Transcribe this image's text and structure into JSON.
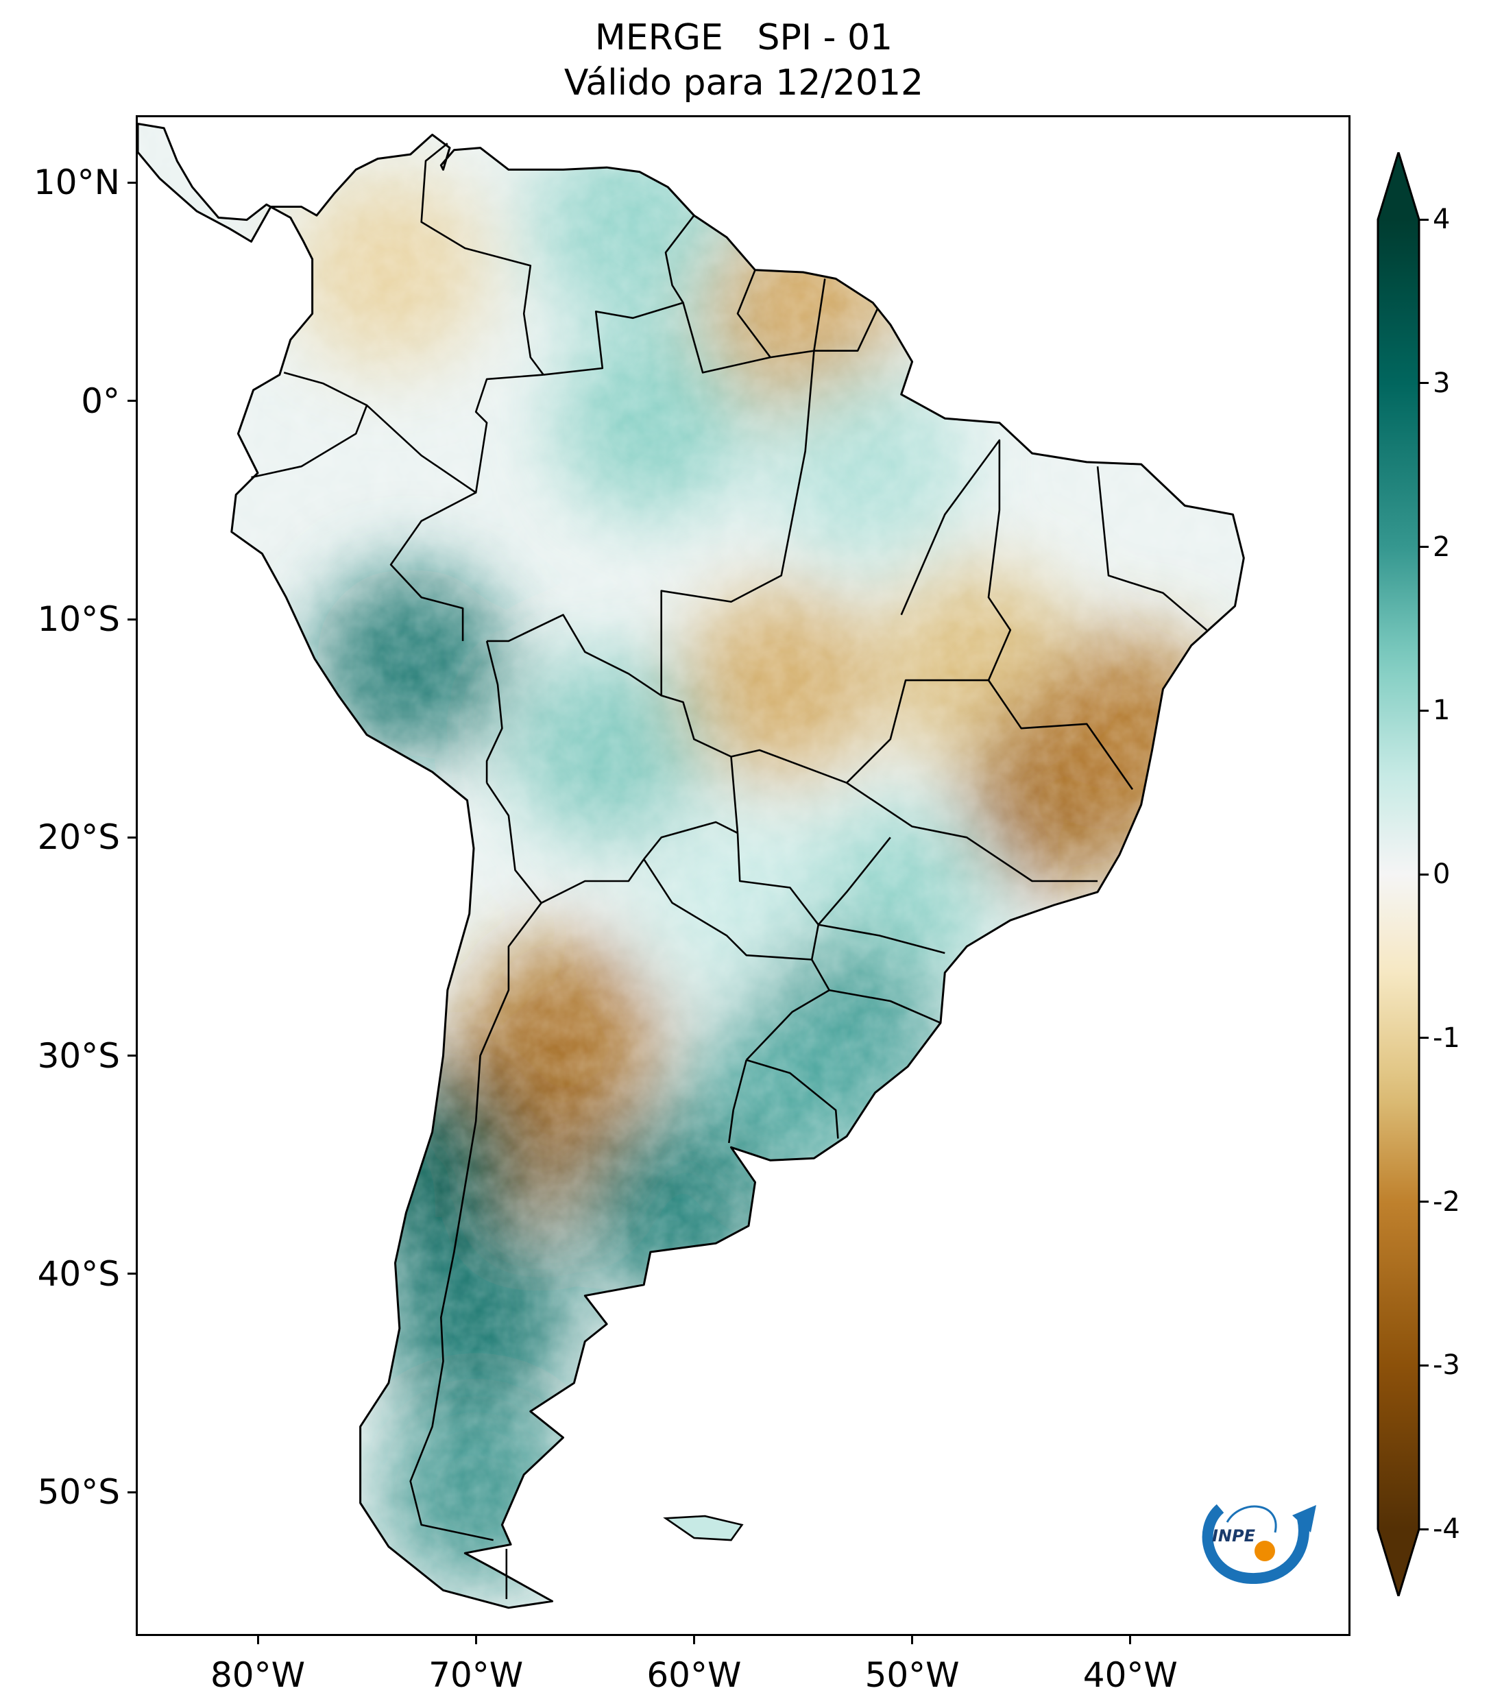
{
  "title": {
    "line1": "MERGE   SPI - 01",
    "line2": "Válido para 12/2012"
  },
  "map": {
    "region": "South America",
    "variable": "SPI - 01",
    "extent": {
      "lon_min": -85.5,
      "lon_max": -30.0,
      "lat_min": -56.5,
      "lat_max": 13.0
    },
    "lat_ticks": [
      {
        "value": 10,
        "label": "10°N"
      },
      {
        "value": 0,
        "label": "0°"
      },
      {
        "value": -10,
        "label": "10°S"
      },
      {
        "value": -20,
        "label": "20°S"
      },
      {
        "value": -30,
        "label": "30°S"
      },
      {
        "value": -40,
        "label": "40°S"
      },
      {
        "value": -50,
        "label": "50°S"
      }
    ],
    "lon_ticks": [
      {
        "value": -80,
        "label": "80°W"
      },
      {
        "value": -70,
        "label": "70°W"
      },
      {
        "value": -60,
        "label": "60°W"
      },
      {
        "value": -50,
        "label": "50°W"
      },
      {
        "value": -40,
        "label": "40°W"
      }
    ],
    "data_regions": [
      {
        "name": "colombia-andes",
        "lon": -74,
        "lat": 6,
        "spi": -1.0
      },
      {
        "name": "venezuela-east",
        "lon": -63,
        "lat": 8,
        "spi": 1.2
      },
      {
        "name": "guianas",
        "lon": -55,
        "lat": 4,
        "spi": -1.7
      },
      {
        "name": "amazon-north",
        "lon": -62,
        "lat": -1,
        "spi": 1.3
      },
      {
        "name": "amazon-para",
        "lon": -52,
        "lat": -3,
        "spi": 0.9
      },
      {
        "name": "peru-andes",
        "lon": -73,
        "lat": -12,
        "spi": 2.8
      },
      {
        "name": "bolivia-lowlands",
        "lon": -64,
        "lat": -16,
        "spi": 1.4
      },
      {
        "name": "mato-grosso",
        "lon": -56,
        "lat": -13,
        "spi": -1.6
      },
      {
        "name": "goias-bahia",
        "lon": -47,
        "lat": -12,
        "spi": -1.4
      },
      {
        "name": "minas-gerais",
        "lon": -43,
        "lat": -18,
        "spi": -2.7
      },
      {
        "name": "espirito-santo-bahia-coast",
        "lon": -40,
        "lat": -15,
        "spi": -2.3
      },
      {
        "name": "sao-paulo-parana",
        "lon": -51,
        "lat": -23,
        "spi": 1.2
      },
      {
        "name": "paraguay",
        "lon": -58,
        "lat": -23,
        "spi": 0.6
      },
      {
        "name": "argentina-northwest",
        "lon": -66,
        "lat": -29,
        "spi": -2.4
      },
      {
        "name": "argentina-cuyo",
        "lon": -68,
        "lat": -33,
        "spi": -2.6
      },
      {
        "name": "rio-grande-do-sul",
        "lon": -53,
        "lat": -29,
        "spi": 2.0
      },
      {
        "name": "uruguay",
        "lon": -56,
        "lat": -32,
        "spi": 1.8
      },
      {
        "name": "buenos-aires",
        "lon": -61,
        "lat": -37,
        "spi": 2.7
      },
      {
        "name": "central-chile",
        "lon": -72,
        "lat": -35,
        "spi": 3.3
      },
      {
        "name": "patagonia-north",
        "lon": -70,
        "lat": -42,
        "spi": 3.0
      },
      {
        "name": "patagonia-south",
        "lon": -70,
        "lat": -50,
        "spi": 2.2
      }
    ]
  },
  "colorbar": {
    "min": -4,
    "max": 4,
    "extend": "both",
    "colormap": "BrBG",
    "ticks": [
      {
        "value": 4,
        "label": "4"
      },
      {
        "value": 3,
        "label": "3"
      },
      {
        "value": 2,
        "label": "2"
      },
      {
        "value": 1,
        "label": "1"
      },
      {
        "value": 0,
        "label": "0"
      },
      {
        "value": -1,
        "label": "-1"
      },
      {
        "value": -2,
        "label": "-2"
      },
      {
        "value": -3,
        "label": "-3"
      },
      {
        "value": -4,
        "label": "-4"
      }
    ],
    "colors": {
      "dry_extreme": "#543005",
      "dry_strong": "#8c510a",
      "dry_moderate": "#bf812d",
      "dry_mild": "#dfc27d",
      "dry_light": "#f6e8c3",
      "neutral": "#f5f5f5",
      "wet_light": "#c7eae5",
      "wet_mild": "#80cdc1",
      "wet_moderate": "#35978f",
      "wet_strong": "#01665e",
      "wet_extreme": "#003c30"
    }
  },
  "logo": {
    "text": "INPE",
    "icon": "inpe-logo-icon",
    "colors": {
      "arc": "#1a72b8",
      "dot": "#f08c00"
    }
  }
}
